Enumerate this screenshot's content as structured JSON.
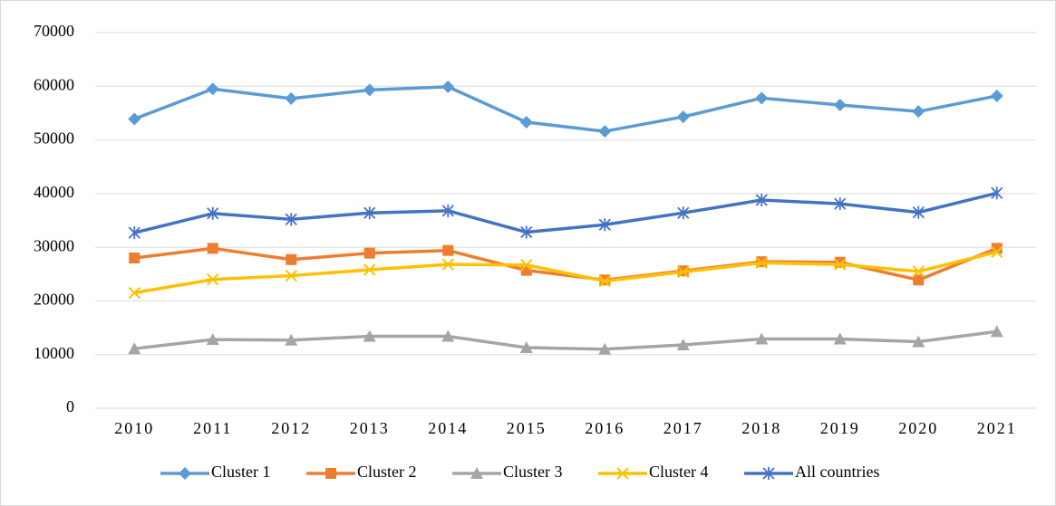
{
  "chart_data": {
    "type": "line",
    "categories": [
      "2010",
      "2011",
      "2012",
      "2013",
      "2014",
      "2015",
      "2016",
      "2017",
      "2018",
      "2019",
      "2020",
      "2021"
    ],
    "series": [
      {
        "name": "Cluster 1",
        "color": "#5b9bd5",
        "marker": "diamond",
        "values": [
          53900,
          59500,
          57700,
          59300,
          59900,
          53300,
          51600,
          54300,
          57800,
          56500,
          55300,
          58200
        ]
      },
      {
        "name": "Cluster 2",
        "color": "#ed7d31",
        "marker": "square",
        "values": [
          28000,
          29800,
          27700,
          28900,
          29400,
          25700,
          23900,
          25600,
          27300,
          27200,
          23900,
          29800
        ]
      },
      {
        "name": "Cluster 3",
        "color": "#a5a5a5",
        "marker": "triangle",
        "values": [
          11100,
          12800,
          12700,
          13400,
          13400,
          11300,
          11000,
          11800,
          12900,
          12900,
          12400,
          14300
        ]
      },
      {
        "name": "Cluster 4",
        "color": "#ffc000",
        "marker": "x",
        "values": [
          21500,
          24000,
          24700,
          25800,
          26800,
          26700,
          23700,
          25400,
          27100,
          26800,
          25500,
          29100
        ]
      },
      {
        "name": "All countries",
        "color": "#4472c4",
        "marker": "star",
        "values": [
          32700,
          36300,
          35200,
          36400,
          36800,
          32800,
          34200,
          36400,
          38800,
          38100,
          36500,
          40100
        ]
      }
    ],
    "ylim": [
      0,
      70000
    ],
    "yticks": [
      0,
      10000,
      20000,
      30000,
      40000,
      50000,
      60000,
      70000
    ],
    "grid": true,
    "legend": "bottom"
  }
}
